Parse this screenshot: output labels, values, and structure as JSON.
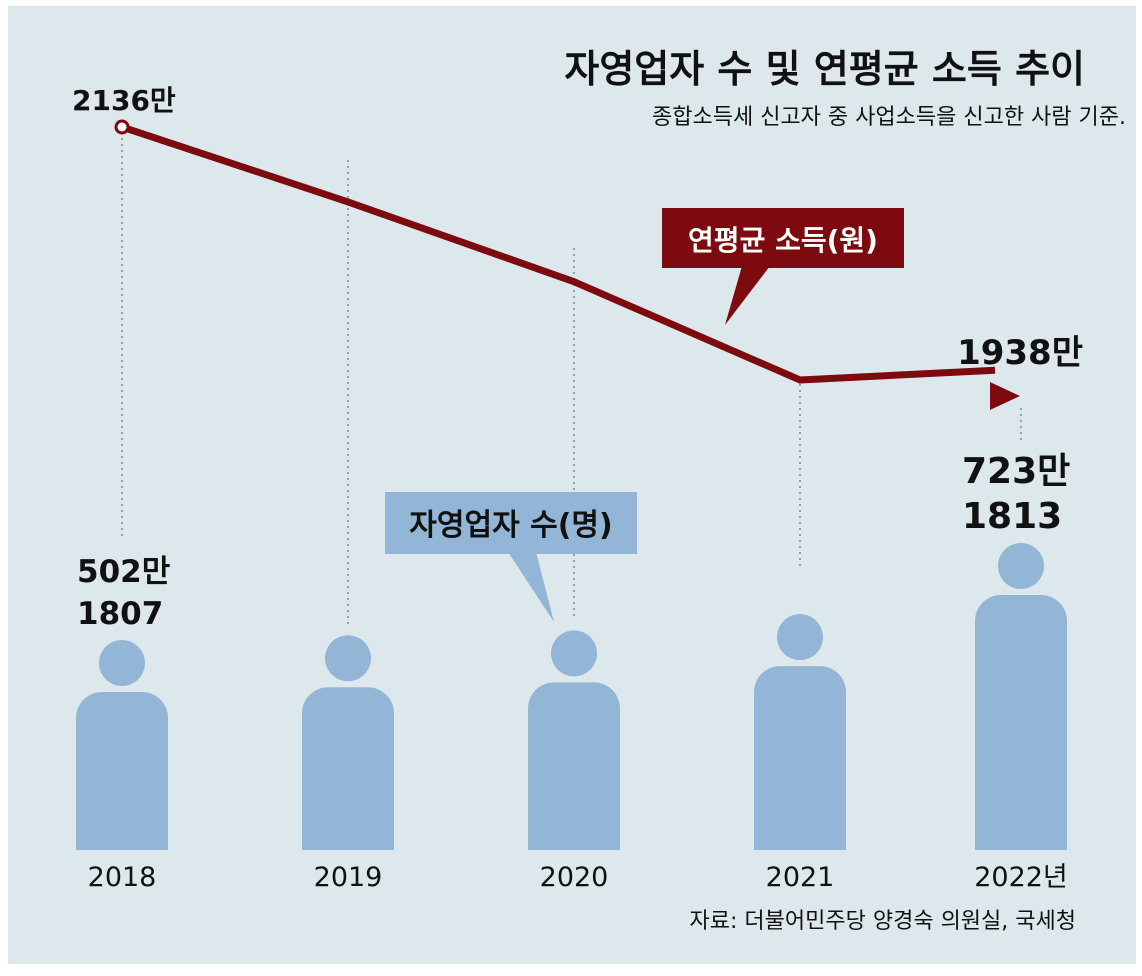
{
  "title": "자영업자 수 및 연평균 소득 추이",
  "subtitle": "종합소득세 신고자 중 사업소득을 신고한 사람 기준.",
  "source": "자료: 더불어민주당 양경숙 의원실, 국세청",
  "colors": {
    "background": "#dde8ec",
    "income_line": "#7d0a0f",
    "people": "#93b6d6",
    "text": "#111111"
  },
  "chart_data": [
    {
      "type": "line",
      "series": [
        {
          "name": "연평균 소득(원)",
          "unit": "만",
          "values": [
            2136,
            2075,
            2010,
            1930,
            1938
          ]
        }
      ],
      "categories": [
        "2018",
        "2019",
        "2020",
        "2021",
        "2022년"
      ],
      "labels_shown": {
        "first": "2136만",
        "last": "1938만"
      },
      "legend_label": "연평균 소득(원)"
    },
    {
      "type": "bar",
      "series": [
        {
          "name": "자영업자 수(명)",
          "values": [
            5021807,
            5130000,
            5240000,
            5610000,
            7231813
          ]
        }
      ],
      "categories": [
        "2018",
        "2019",
        "2020",
        "2021",
        "2022년"
      ],
      "labels_shown": {
        "first_line1": "502만",
        "first_line2": "1807",
        "last_line1": "723만",
        "last_line2": "1813"
      },
      "legend_label": "자영업자 수(명)"
    }
  ]
}
